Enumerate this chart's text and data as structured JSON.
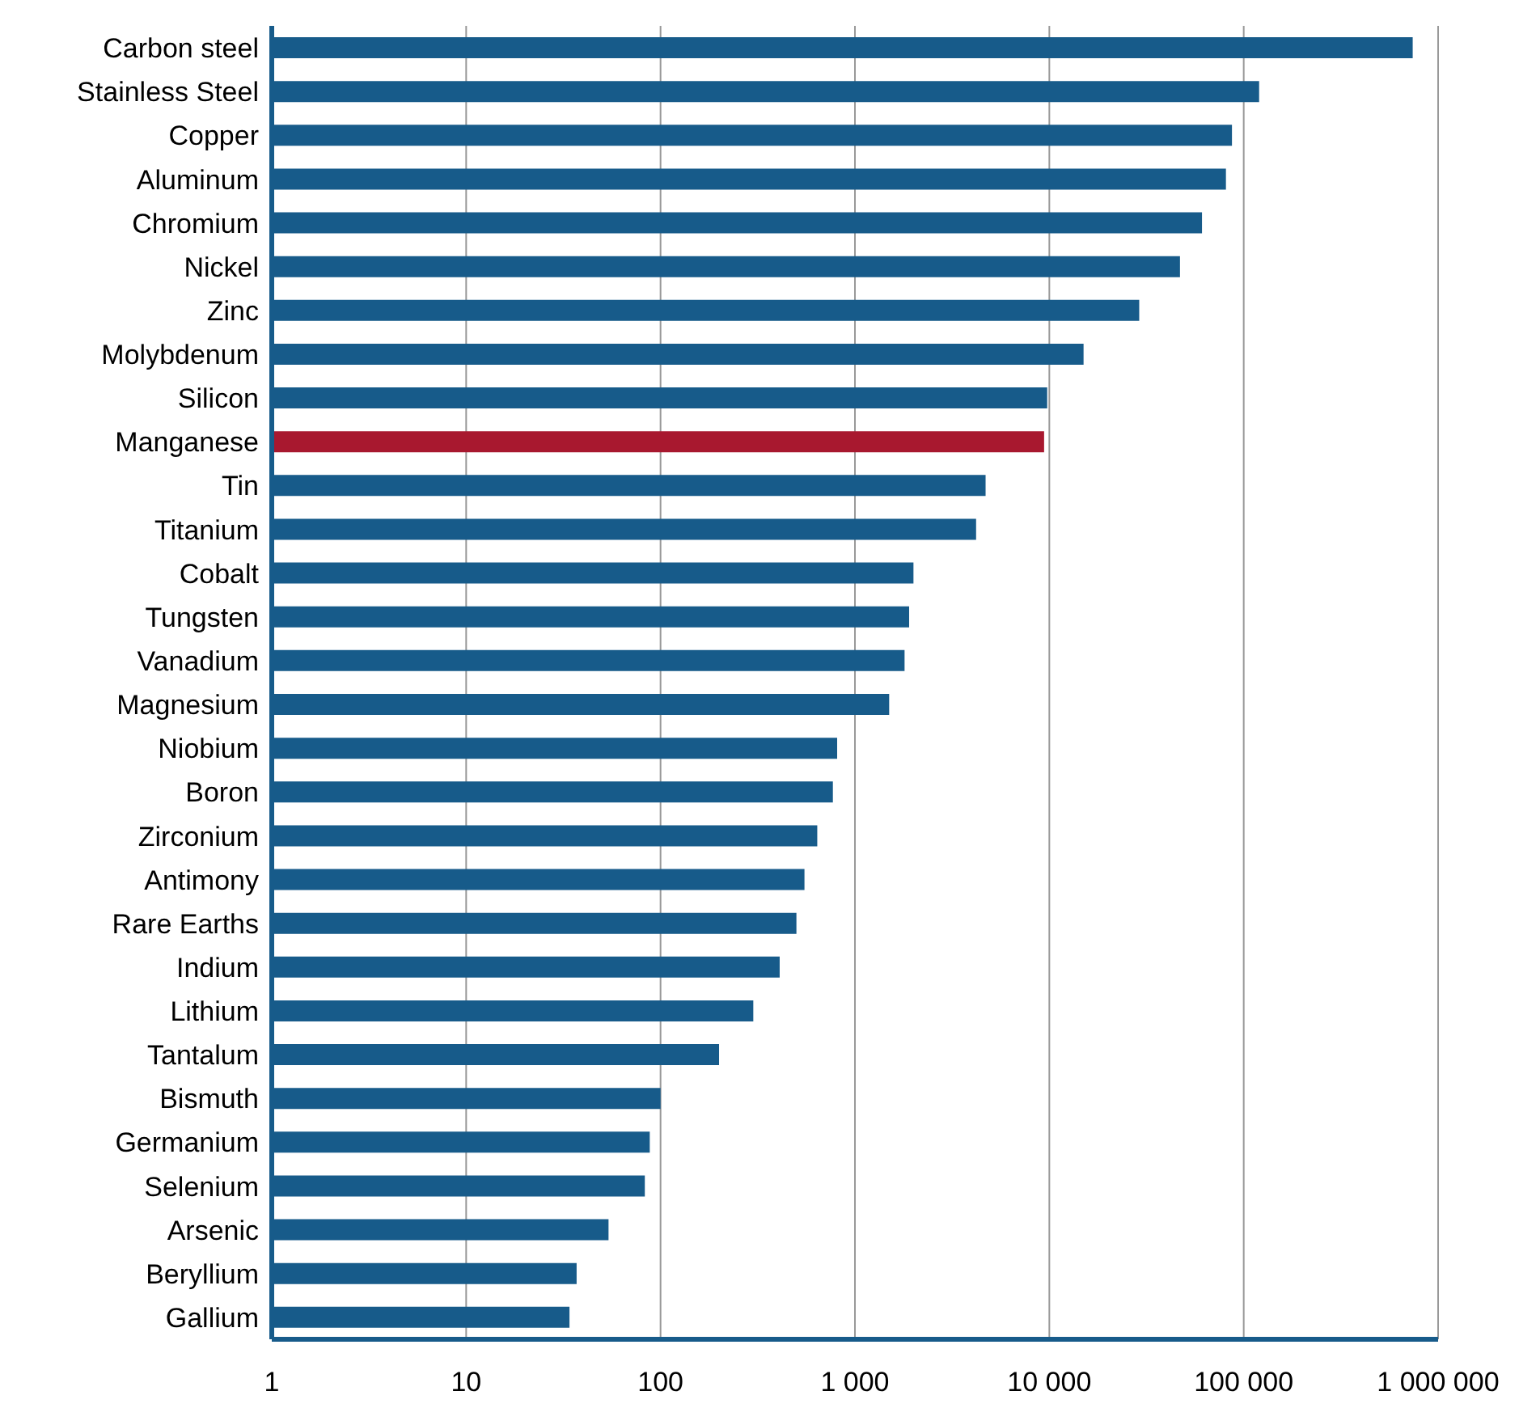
{
  "chart_data": {
    "type": "bar",
    "orientation": "horizontal",
    "categories": [
      "Carbon steel",
      "Stainless Steel",
      "Copper",
      "Aluminum",
      "Chromium",
      "Nickel",
      "Zinc",
      "Molybdenum",
      "Silicon",
      "Manganese",
      "Tin",
      "Titanium",
      "Cobalt",
      "Tungsten",
      "Vanadium",
      "Magnesium",
      "Niobium",
      "Boron",
      "Zirconium",
      "Antimony",
      "Rare Earths",
      "Indium",
      "Lithium",
      "Tantalum",
      "Bismuth",
      "Germanium",
      "Selenium",
      "Arsenic",
      "Beryllium",
      "Gallium"
    ],
    "values": [
      740000,
      120000,
      87000,
      81000,
      61000,
      47000,
      29000,
      15000,
      9750,
      9400,
      4700,
      4200,
      2000,
      1900,
      1800,
      1500,
      810,
      770,
      640,
      550,
      500,
      410,
      300,
      200,
      100,
      88,
      83,
      54,
      37,
      34
    ],
    "colors": [
      "#175b8a",
      "#175b8a",
      "#175b8a",
      "#175b8a",
      "#175b8a",
      "#175b8a",
      "#175b8a",
      "#175b8a",
      "#175b8a",
      "#a8182f",
      "#175b8a",
      "#175b8a",
      "#175b8a",
      "#175b8a",
      "#175b8a",
      "#175b8a",
      "#175b8a",
      "#175b8a",
      "#175b8a",
      "#175b8a",
      "#175b8a",
      "#175b8a",
      "#175b8a",
      "#175b8a",
      "#175b8a",
      "#175b8a",
      "#175b8a",
      "#175b8a",
      "#175b8a",
      "#175b8a"
    ],
    "log": "x",
    "xlim": [
      1,
      1000000
    ],
    "xticks": [
      1,
      10,
      100,
      {
        "value": 1000,
        "label": "1 000"
      },
      {
        "value": 10000,
        "label": "10 000"
      },
      {
        "value": 100000,
        "label": "100 000"
      },
      {
        "value": 1000000,
        "label": "1 000 000"
      }
    ],
    "grid": "x"
  }
}
